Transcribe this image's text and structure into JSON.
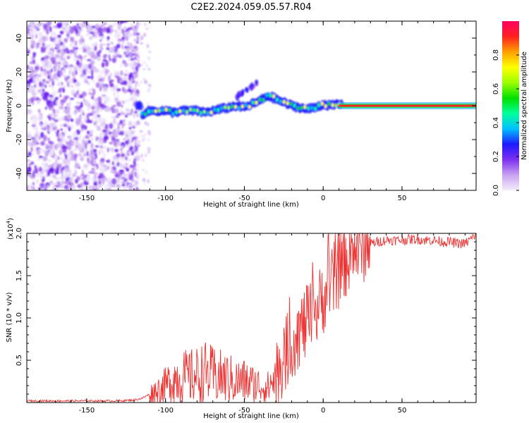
{
  "figure": {
    "title": "C2E2.2024.059.05.57.R04"
  },
  "chart_data": [
    {
      "type": "heatmap",
      "title": "C2E2.2024.059.05.57.R04",
      "xlabel": "Height of straight line (km)",
      "ylabel": "Frequency (Hz)",
      "xlim": [
        -188,
        97
      ],
      "ylim": [
        -50,
        50
      ],
      "xticks": [
        -150,
        -100,
        -50,
        0,
        50
      ],
      "xtick_labels": [
        "-150",
        "-100",
        "-50",
        "0",
        "50"
      ],
      "yticks": [
        -40,
        -20,
        0,
        20,
        40
      ],
      "ytick_labels": [
        "-40",
        "-20",
        "0",
        "20",
        "40"
      ],
      "colorbar": {
        "label": "Normalized spectral amplitude",
        "range": [
          0,
          1
        ],
        "ticks": [
          0,
          0.2,
          0.4,
          0.6,
          0.8
        ],
        "tick_labels": [
          "0.0",
          "0.2",
          "0.4",
          "0.6",
          "0.8"
        ],
        "colormap": [
          "#f4eefb",
          "#c8a2ef",
          "#7d2ff0",
          "#1d1aff",
          "#00c0ff",
          "#00ff9a",
          "#00e000",
          "#9cff00",
          "#ffff00",
          "#ffa000",
          "#ff2020",
          "#ff0060"
        ]
      },
      "ridge_track": {
        "x": [
          -115,
          -110,
          -105,
          -100,
          -95,
          -90,
          -85,
          -80,
          -75,
          -70,
          -65,
          -60,
          -55,
          -50,
          -45,
          -40,
          -35,
          -30,
          -25,
          -20,
          -15,
          -10,
          -5,
          0,
          5,
          10,
          15,
          97
        ],
        "y": [
          -5,
          -3,
          -3,
          -3,
          -4,
          -3,
          -3,
          -3,
          -4,
          -3,
          -2,
          -1,
          0,
          -1,
          1,
          3,
          6,
          4,
          2,
          0,
          -1,
          -2,
          -1,
          1,
          0,
          1,
          0,
          0
        ]
      },
      "steady_line": {
        "x_start": 10,
        "x_end": 97,
        "y": 0
      },
      "grid": false,
      "legend": "colorbar-right"
    },
    {
      "type": "line",
      "xlabel": "Height of straight line (km)",
      "ylabel": "SNR (10 * v/v)",
      "y_scale_label": "(x10",
      "y_scale_exponent": "4",
      "y_scale_close": ")",
      "xlim": [
        -188,
        97
      ],
      "ylim": [
        0,
        2.0
      ],
      "xticks": [
        -150,
        -100,
        -50,
        0,
        50
      ],
      "xtick_labels": [
        "-150",
        "-100",
        "-50",
        "0",
        "50"
      ],
      "yticks": [
        0.5,
        1.0,
        1.5,
        2.0
      ],
      "ytick_labels": [
        "0.5",
        "1.0",
        "1.5",
        "2.0"
      ],
      "series": [
        {
          "color": "#ee3333",
          "x": [
            -188,
            -180,
            -170,
            -160,
            -150,
            -140,
            -130,
            -120,
            -115,
            -110,
            -105,
            -100,
            -95,
            -90,
            -85,
            -80,
            -75,
            -70,
            -65,
            -60,
            -55,
            -50,
            -45,
            -40,
            -35,
            -30,
            -25,
            -20,
            -15,
            -10,
            -5,
            0,
            5,
            10,
            15,
            20,
            25,
            30,
            35,
            40,
            45,
            50,
            55,
            60,
            65,
            70,
            75,
            80,
            85,
            90,
            95,
            97
          ],
          "y": [
            0.02,
            0.02,
            0.02,
            0.02,
            0.02,
            0.02,
            0.02,
            0.03,
            0.05,
            0.1,
            0.15,
            0.2,
            0.28,
            0.3,
            0.3,
            0.32,
            0.35,
            0.32,
            0.3,
            0.28,
            0.25,
            0.25,
            0.22,
            0.2,
            0.18,
            0.3,
            0.55,
            0.7,
            0.85,
            0.95,
            1.05,
            1.25,
            1.4,
            1.55,
            1.7,
            1.8,
            1.85,
            1.88,
            1.9,
            1.92,
            1.92,
            1.92,
            1.93,
            1.93,
            1.92,
            1.92,
            1.9,
            1.9,
            1.88,
            1.88,
            1.95,
            2.0
          ]
        }
      ],
      "grid": false
    }
  ]
}
